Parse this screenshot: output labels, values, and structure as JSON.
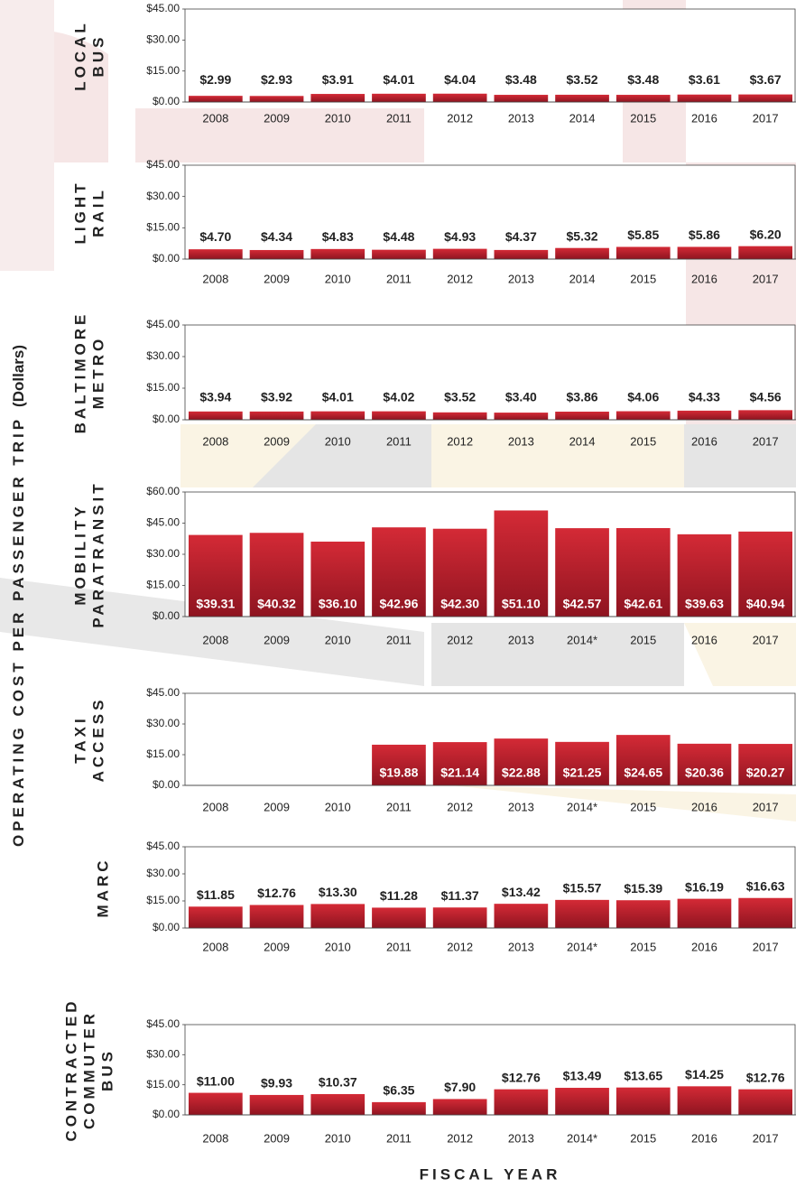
{
  "y_label": "OPERATING COST PER PASSENGER TRIP",
  "y_label_unit": "(Dollars)",
  "x_label": "FISCAL YEAR",
  "chart_data": [
    {
      "type": "bar",
      "title": [
        "LOCAL",
        "BUS"
      ],
      "categories": [
        "2008",
        "2009",
        "2010",
        "2011",
        "2012",
        "2013",
        "2014",
        "2015",
        "2016",
        "2017"
      ],
      "values": [
        2.99,
        2.93,
        3.91,
        4.01,
        4.04,
        3.48,
        3.52,
        3.48,
        3.61,
        3.67
      ],
      "value_labels": [
        "$2.99",
        "$2.93",
        "$3.91",
        "$4.01",
        "$4.04",
        "$3.48",
        "$3.52",
        "$3.48",
        "$3.61",
        "$3.67"
      ],
      "ylim": [
        0,
        45
      ],
      "yticks": [
        {
          "value": 0,
          "label": "$0.00"
        },
        {
          "value": 15,
          "label": "$15.00"
        },
        {
          "value": 30,
          "label": "$30.00"
        },
        {
          "value": 45,
          "label": "$45.00"
        }
      ],
      "color": "#b81c2a",
      "label_position": "above"
    },
    {
      "type": "bar",
      "title": [
        "LIGHT",
        "RAIL"
      ],
      "categories": [
        "2008",
        "2009",
        "2010",
        "2011",
        "2012",
        "2013",
        "2014",
        "2015",
        "2016",
        "2017"
      ],
      "values": [
        4.7,
        4.34,
        4.83,
        4.48,
        4.93,
        4.37,
        5.32,
        5.85,
        5.86,
        6.2
      ],
      "value_labels": [
        "$4.70",
        "$4.34",
        "$4.83",
        "$4.48",
        "$4.93",
        "$4.37",
        "$5.32",
        "$5.85",
        "$5.86",
        "$6.20"
      ],
      "ylim": [
        0,
        45
      ],
      "yticks": [
        {
          "value": 0,
          "label": "$0.00"
        },
        {
          "value": 15,
          "label": "$15.00"
        },
        {
          "value": 30,
          "label": "$30.00"
        },
        {
          "value": 45,
          "label": "$45.00"
        }
      ],
      "color": "#b81c2a",
      "label_position": "above"
    },
    {
      "type": "bar",
      "title": [
        "BALTIMORE",
        "METRO"
      ],
      "categories": [
        "2008",
        "2009",
        "2010",
        "2011",
        "2012",
        "2013",
        "2014",
        "2015",
        "2016",
        "2017"
      ],
      "values": [
        3.94,
        3.92,
        4.01,
        4.02,
        3.52,
        3.4,
        3.86,
        4.06,
        4.33,
        4.56
      ],
      "value_labels": [
        "$3.94",
        "$3.92",
        "$4.01",
        "$4.02",
        "$3.52",
        "$3.40",
        "$3.86",
        "$4.06",
        "$4.33",
        "$4.56"
      ],
      "ylim": [
        0,
        45
      ],
      "yticks": [
        {
          "value": 0,
          "label": "$0.00"
        },
        {
          "value": 15,
          "label": "$15.00"
        },
        {
          "value": 30,
          "label": "$30.00"
        },
        {
          "value": 45,
          "label": "$45.00"
        }
      ],
      "color": "#b81c2a",
      "label_position": "above"
    },
    {
      "type": "bar",
      "title": [
        "MOBILITY",
        "PARATRANSIT"
      ],
      "categories": [
        "2008",
        "2009",
        "2010",
        "2011",
        "2012",
        "2013",
        "2014*",
        "2015",
        "2016",
        "2017"
      ],
      "values": [
        39.31,
        40.32,
        36.1,
        42.96,
        42.3,
        51.1,
        42.57,
        42.61,
        39.63,
        40.94
      ],
      "value_labels": [
        "$39.31",
        "$40.32",
        "$36.10",
        "$42.96",
        "$42.30",
        "$51.10",
        "$42.57",
        "$42.61",
        "$39.63",
        "$40.94"
      ],
      "ylim": [
        0,
        60
      ],
      "yticks": [
        {
          "value": 0,
          "label": "$0.00"
        },
        {
          "value": 15,
          "label": "$15.00"
        },
        {
          "value": 30,
          "label": "$30.00"
        },
        {
          "value": 45,
          "label": "$45.00"
        },
        {
          "value": 60,
          "label": "$60.00"
        }
      ],
      "color": "#b81c2a",
      "label_position": "inside"
    },
    {
      "type": "bar",
      "title": [
        "TAXI",
        "ACCESS"
      ],
      "categories": [
        "2008",
        "2009",
        "2010",
        "2011",
        "2012",
        "2013",
        "2014*",
        "2015",
        "2016",
        "2017"
      ],
      "values": [
        null,
        null,
        null,
        19.88,
        21.14,
        22.88,
        21.25,
        24.65,
        20.36,
        20.27
      ],
      "value_labels": [
        null,
        null,
        null,
        "$19.88",
        "$21.14",
        "$22.88",
        "$21.25",
        "$24.65",
        "$20.36",
        "$20.27"
      ],
      "ylim": [
        0,
        45
      ],
      "yticks": [
        {
          "value": 0,
          "label": "$0.00"
        },
        {
          "value": 15,
          "label": "$15.00"
        },
        {
          "value": 30,
          "label": "$30.00"
        },
        {
          "value": 45,
          "label": "$45.00"
        }
      ],
      "color": "#b81c2a",
      "label_position": "inside"
    },
    {
      "type": "bar",
      "title": [
        "MARC"
      ],
      "categories": [
        "2008",
        "2009",
        "2010",
        "2011",
        "2012",
        "2013",
        "2014*",
        "2015",
        "2016",
        "2017"
      ],
      "values": [
        11.85,
        12.76,
        13.3,
        11.28,
        11.37,
        13.42,
        15.57,
        15.39,
        16.19,
        16.63
      ],
      "value_labels": [
        "$11.85",
        "$12.76",
        "$13.30",
        "$11.28",
        "$11.37",
        "$13.42",
        "$15.57",
        "$15.39",
        "$16.19",
        "$16.63"
      ],
      "ylim": [
        0,
        45
      ],
      "yticks": [
        {
          "value": 0,
          "label": "$0.00"
        },
        {
          "value": 15,
          "label": "$15.00"
        },
        {
          "value": 30,
          "label": "$30.00"
        },
        {
          "value": 45,
          "label": "$45.00"
        }
      ],
      "color": "#b81c2a",
      "label_position": "above"
    },
    {
      "type": "bar",
      "title": [
        "CONTRACTED",
        "COMMUTER",
        "BUS"
      ],
      "categories": [
        "2008",
        "2009",
        "2010",
        "2011",
        "2012",
        "2013",
        "2014*",
        "2015",
        "2016",
        "2017"
      ],
      "values": [
        11.0,
        9.93,
        10.37,
        6.35,
        7.9,
        12.76,
        13.49,
        13.65,
        14.25,
        12.76
      ],
      "value_labels": [
        "$11.00",
        "$9.93",
        "$10.37",
        "$6.35",
        "$7.90",
        "$12.76",
        "$13.49",
        "$13.65",
        "$14.25",
        "$12.76"
      ],
      "ylim": [
        0,
        45
      ],
      "yticks": [
        {
          "value": 0,
          "label": "$0.00"
        },
        {
          "value": 15,
          "label": "$15.00"
        },
        {
          "value": 30,
          "label": "$30.00"
        },
        {
          "value": 45,
          "label": "$45.00"
        }
      ],
      "color": "#b81c2a",
      "label_position": "above"
    }
  ]
}
